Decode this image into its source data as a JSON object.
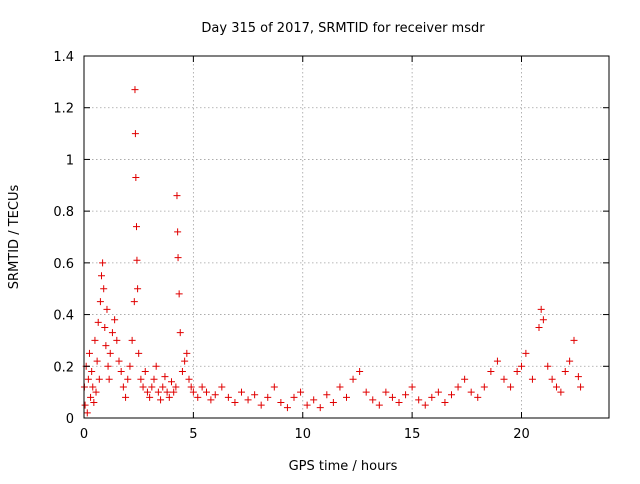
{
  "chart_data": {
    "type": "scatter",
    "title": "Day 315 of 2017, SRMTID for receiver msdr",
    "xlabel": "GPS time / hours",
    "ylabel": "SRMTID / TECUs",
    "xlim": [
      0,
      24
    ],
    "ylim": [
      0,
      1.4
    ],
    "x_ticks": [
      "0",
      "5",
      "10",
      "15",
      "20"
    ],
    "y_ticks": [
      "0",
      "0.2",
      "0.4",
      "0.6",
      "0.8",
      "1",
      "1.2",
      "1.4"
    ],
    "grid": true,
    "legend": "none",
    "marker": "+",
    "color": "#e00000",
    "series": [
      {
        "x": [
          0.02,
          0.05,
          0.1,
          0.15,
          0.2,
          0.25,
          0.3,
          0.35,
          0.4,
          0.45,
          0.5,
          0.55,
          0.6,
          0.65,
          0.7,
          0.75,
          0.8,
          0.85,
          0.9,
          0.95,
          1.0,
          1.05,
          1.1,
          1.15,
          1.2,
          1.3,
          1.4,
          1.5,
          1.6,
          1.7,
          1.8,
          1.9,
          2.0,
          2.1,
          2.2,
          2.3,
          2.33,
          2.35,
          2.37,
          2.4,
          2.42,
          2.45,
          2.5,
          2.6,
          2.7,
          2.8,
          2.9,
          3.0,
          3.1,
          3.2,
          3.3,
          3.4,
          3.5,
          3.6,
          3.7,
          3.8,
          3.9,
          4.0,
          4.1,
          4.2,
          4.25,
          4.28,
          4.3,
          4.35,
          4.4,
          4.5,
          4.6,
          4.7,
          4.8,
          4.9,
          5.0,
          5.2,
          5.4,
          5.6,
          5.8,
          6.0,
          6.3,
          6.6,
          6.9,
          7.2,
          7.5,
          7.8,
          8.1,
          8.4,
          8.7,
          9.0,
          9.3,
          9.6,
          9.9,
          10.2,
          10.5,
          10.8,
          11.1,
          11.4,
          11.7,
          12.0,
          12.3,
          12.6,
          12.9,
          13.2,
          13.5,
          13.8,
          14.1,
          14.4,
          14.7,
          15.0,
          15.3,
          15.6,
          15.9,
          16.2,
          16.5,
          16.8,
          17.1,
          17.4,
          17.7,
          18.0,
          18.3,
          18.6,
          18.9,
          19.2,
          19.5,
          19.8,
          20.0,
          20.2,
          20.5,
          20.8,
          20.9,
          21.0,
          21.2,
          21.4,
          21.6,
          21.8,
          22.0,
          22.2,
          22.4,
          22.6,
          22.7
        ],
        "y": [
          0.12,
          0.05,
          0.2,
          0.02,
          0.15,
          0.25,
          0.08,
          0.18,
          0.12,
          0.06,
          0.3,
          0.1,
          0.22,
          0.37,
          0.15,
          0.45,
          0.55,
          0.6,
          0.5,
          0.35,
          0.28,
          0.42,
          0.2,
          0.15,
          0.25,
          0.33,
          0.38,
          0.3,
          0.22,
          0.18,
          0.12,
          0.08,
          0.15,
          0.2,
          0.3,
          0.45,
          1.27,
          1.1,
          0.93,
          0.74,
          0.61,
          0.5,
          0.25,
          0.15,
          0.12,
          0.18,
          0.1,
          0.08,
          0.12,
          0.15,
          0.2,
          0.1,
          0.07,
          0.12,
          0.16,
          0.1,
          0.08,
          0.14,
          0.1,
          0.12,
          0.86,
          0.72,
          0.62,
          0.48,
          0.33,
          0.18,
          0.22,
          0.25,
          0.15,
          0.12,
          0.1,
          0.08,
          0.12,
          0.1,
          0.07,
          0.09,
          0.12,
          0.08,
          0.06,
          0.1,
          0.07,
          0.09,
          0.05,
          0.08,
          0.12,
          0.06,
          0.04,
          0.08,
          0.1,
          0.05,
          0.07,
          0.04,
          0.09,
          0.06,
          0.12,
          0.08,
          0.15,
          0.18,
          0.1,
          0.07,
          0.05,
          0.1,
          0.08,
          0.06,
          0.09,
          0.12,
          0.07,
          0.05,
          0.08,
          0.1,
          0.06,
          0.09,
          0.12,
          0.15,
          0.1,
          0.08,
          0.12,
          0.18,
          0.22,
          0.15,
          0.12,
          0.18,
          0.2,
          0.25,
          0.15,
          0.35,
          0.42,
          0.38,
          0.2,
          0.15,
          0.12,
          0.1,
          0.18,
          0.22,
          0.3,
          0.16,
          0.12
        ]
      }
    ]
  }
}
